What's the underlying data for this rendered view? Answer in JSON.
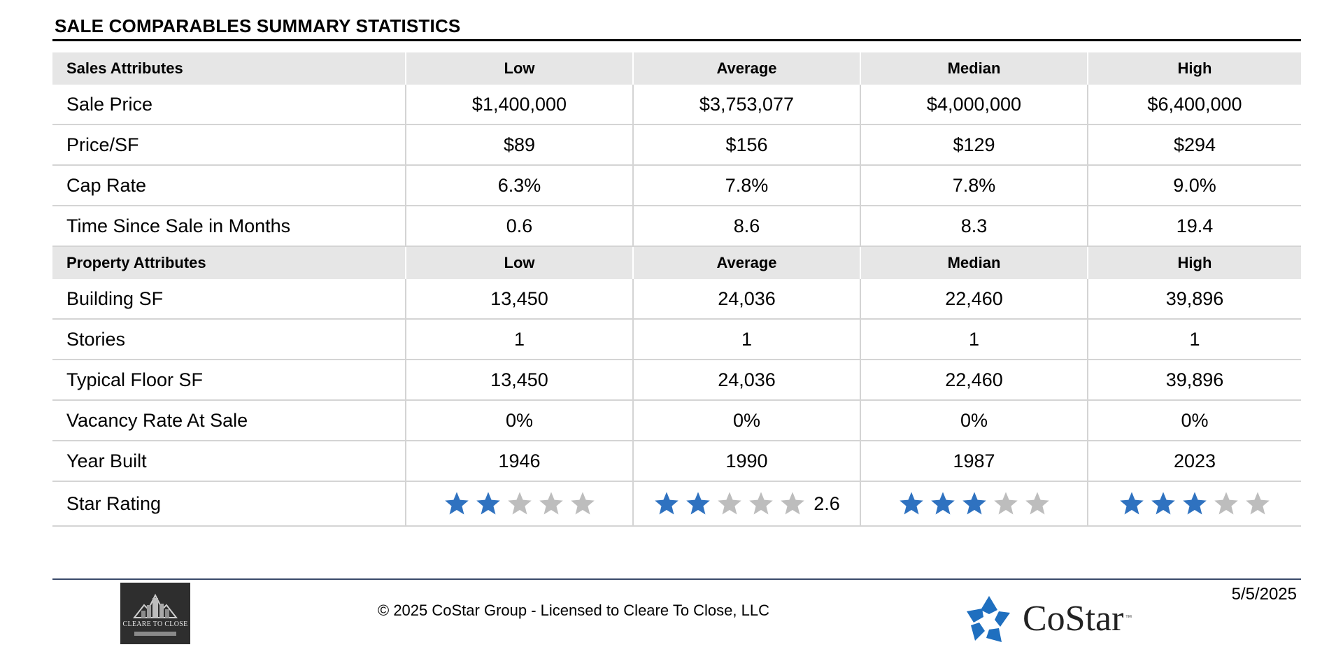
{
  "title": "SALE COMPARABLES SUMMARY STATISTICS",
  "sales_header": {
    "label": "Sales Attributes",
    "low": "Low",
    "average": "Average",
    "median": "Median",
    "high": "High"
  },
  "sales_rows": [
    {
      "label": "Sale Price",
      "low": "$1,400,000",
      "average": "$3,753,077",
      "median": "$4,000,000",
      "high": "$6,400,000"
    },
    {
      "label": "Price/SF",
      "low": "$89",
      "average": "$156",
      "median": "$129",
      "high": "$294"
    },
    {
      "label": "Cap Rate",
      "low": "6.3%",
      "average": "7.8%",
      "median": "7.8%",
      "high": "9.0%"
    },
    {
      "label": "Time Since Sale in Months",
      "low": "0.6",
      "average": "8.6",
      "median": "8.3",
      "high": "19.4"
    }
  ],
  "property_header": {
    "label": "Property Attributes",
    "low": "Low",
    "average": "Average",
    "median": "Median",
    "high": "High"
  },
  "property_rows": [
    {
      "label": "Building SF",
      "low": "13,450",
      "average": "24,036",
      "median": "22,460",
      "high": "39,896"
    },
    {
      "label": "Stories",
      "low": "1",
      "average": "1",
      "median": "1",
      "high": "1"
    },
    {
      "label": "Typical Floor SF",
      "low": "13,450",
      "average": "24,036",
      "median": "22,460",
      "high": "39,896"
    },
    {
      "label": "Vacancy Rate At Sale",
      "low": "0%",
      "average": "0%",
      "median": "0%",
      "high": "0%"
    },
    {
      "label": "Year Built",
      "low": "1946",
      "average": "1990",
      "median": "1987",
      "high": "2023"
    }
  ],
  "star_rating": {
    "label": "Star Rating",
    "low": {
      "filled": 2,
      "total": 5
    },
    "average": {
      "filled": 2,
      "total": 5,
      "value_text": "2.6"
    },
    "median": {
      "filled": 3,
      "total": 5
    },
    "high": {
      "filled": 3,
      "total": 5
    }
  },
  "colors": {
    "star_filled": "#2f72c0",
    "star_empty": "#bdbdbd",
    "header_bg": "#e6e6e6",
    "costar_blue": "#1f6fbf"
  },
  "footer": {
    "copyright": "© 2025 CoStar Group - Licensed to Cleare To Close, LLC",
    "date": "5/5/2025",
    "costar_brand": "CoStar",
    "costar_tm": "™",
    "logo_text": "CLEARE TO CLOSE"
  }
}
